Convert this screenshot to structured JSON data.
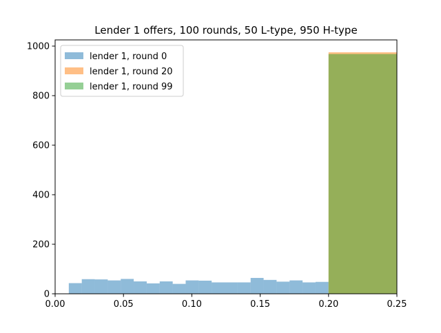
{
  "chart_data": {
    "type": "bar",
    "title": "Lender 1 offers, 100 rounds, 50 L-type, 950 H-type",
    "xlabel": "",
    "ylabel": "",
    "xlim": [
      0.0,
      0.25
    ],
    "ylim": [
      0,
      1025
    ],
    "x_ticks": [
      0.0,
      0.05,
      0.1,
      0.15,
      0.2,
      0.25
    ],
    "x_tick_labels": [
      "0.00",
      "0.05",
      "0.10",
      "0.15",
      "0.20",
      "0.25"
    ],
    "y_ticks": [
      0,
      200,
      400,
      600,
      800,
      1000
    ],
    "y_tick_labels": [
      "0",
      "200",
      "400",
      "600",
      "800",
      "1000"
    ],
    "grid": false,
    "legend_position": "top-left",
    "series": [
      {
        "name": "lender 1, round 0",
        "color": "#1f77b4",
        "alpha": 0.5,
        "bin_edges": [
          0.01,
          0.0195,
          0.029,
          0.0385,
          0.048,
          0.0575,
          0.067,
          0.0765,
          0.086,
          0.0955,
          0.105,
          0.1145,
          0.124,
          0.1335,
          0.143,
          0.1525,
          0.162,
          0.1715,
          0.181,
          0.1905,
          0.2
        ],
        "counts": [
          43,
          59,
          58,
          54,
          60,
          50,
          42,
          50,
          40,
          54,
          53,
          46,
          46,
          46,
          64,
          56,
          49,
          54,
          46,
          48
        ]
      },
      {
        "name": "lender 1, round 20",
        "color": "#ff7f0e",
        "alpha": 0.5,
        "bin_edges": [
          0.2,
          0.25
        ],
        "counts": [
          975
        ]
      },
      {
        "name": "lender 1, round 99",
        "color": "#2ca02c",
        "alpha": 0.5,
        "bin_edges": [
          0.2,
          0.25
        ],
        "counts": [
          968
        ]
      }
    ]
  }
}
